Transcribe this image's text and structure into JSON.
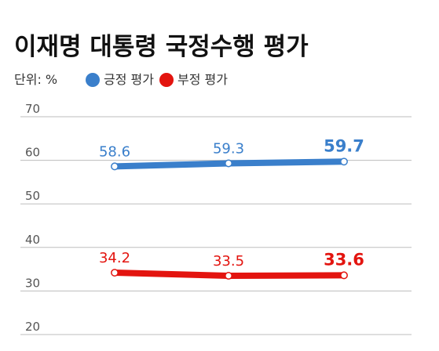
{
  "chart_data": {
    "type": "line",
    "title": "이재명 대통령 국정수행 평가",
    "unit_label": "단위: %",
    "x": [
      "",
      "",
      ""
    ],
    "ylim": [
      20,
      70
    ],
    "yticks": [
      20,
      30,
      40,
      50,
      60,
      70
    ],
    "grid": true,
    "legend_position": "top-left",
    "series": [
      {
        "name": "긍정 평가",
        "color": "#3a7fcb",
        "values": [
          58.6,
          59.3,
          59.7
        ],
        "labels": [
          "58.6",
          "59.3",
          "59.7"
        ]
      },
      {
        "name": "부정 평가",
        "color": "#e3140f",
        "values": [
          34.2,
          33.5,
          33.6
        ],
        "labels": [
          "34.2",
          "33.5",
          "33.6"
        ]
      }
    ]
  }
}
